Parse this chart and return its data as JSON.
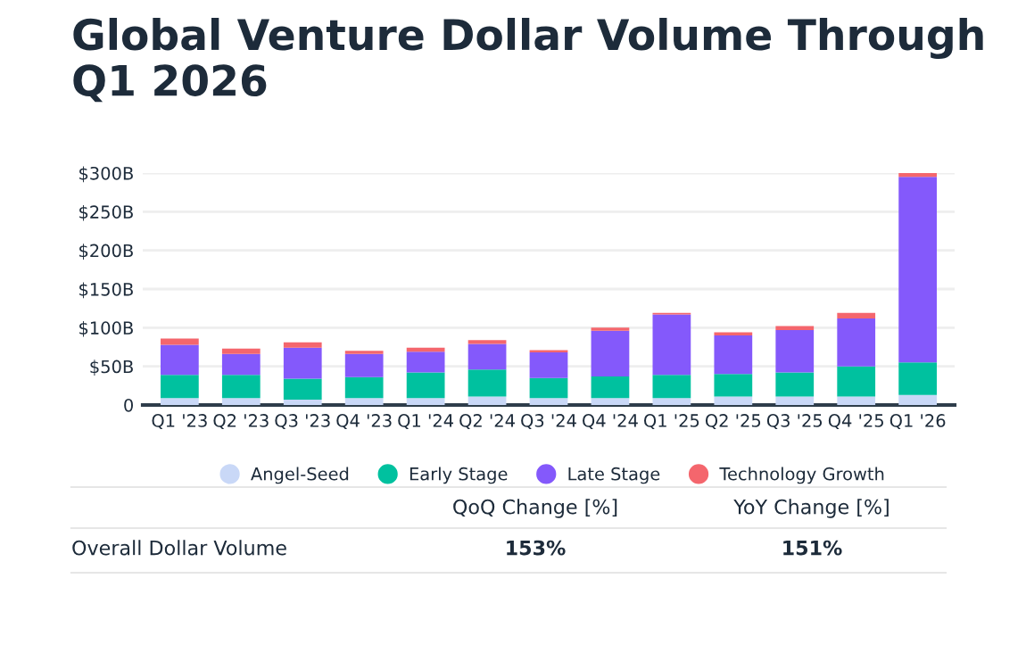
{
  "chart_data": {
    "type": "bar",
    "stacked": true,
    "title": "Global Venture Dollar Volume Through\nQ1 2026",
    "categories": [
      "Q1 '23",
      "Q2 '23",
      "Q3 '23",
      "Q4 '23",
      "Q1 '24",
      "Q2 '24",
      "Q3 '24",
      "Q4 '24",
      "Q1 '25",
      "Q2 '25",
      "Q3 '25",
      "Q4 '25",
      "Q1 '26"
    ],
    "series": [
      {
        "name": "Angel-Seed",
        "color": "#c9d8f7",
        "values": [
          9,
          9,
          7,
          9,
          9,
          11,
          9,
          9,
          9,
          11,
          11,
          11,
          13
        ]
      },
      {
        "name": "Early Stage",
        "color": "#00c19f",
        "values": [
          30,
          30,
          27,
          27,
          33,
          35,
          26,
          28,
          30,
          29,
          31,
          39,
          42
        ]
      },
      {
        "name": "Late Stage",
        "color": "#8459fb",
        "values": [
          39,
          27,
          40,
          30,
          27,
          33,
          33,
          59,
          78,
          50,
          55,
          62,
          240
        ]
      },
      {
        "name": "Technology Growth",
        "color": "#f4666d",
        "values": [
          8,
          7,
          7,
          4,
          5,
          5,
          3,
          4,
          2,
          4,
          5,
          7,
          5
        ]
      }
    ],
    "ylim": [
      0,
      300
    ],
    "yticks": [
      0,
      {
        "value": 50,
        "label": "$50B"
      },
      {
        "value": 100,
        "label": "$100B"
      },
      {
        "value": 150,
        "label": "$150B"
      },
      {
        "value": 200,
        "label": "$200B"
      },
      {
        "value": 250,
        "label": "$250B"
      },
      {
        "value": 300,
        "label": "$300B"
      }
    ],
    "grid": "y",
    "legend": "bottom",
    "annotations": [
      "QoQ Change [%]",
      "YoY Change [%]",
      "Overall Dollar Volume",
      "153%",
      "151%"
    ]
  }
}
